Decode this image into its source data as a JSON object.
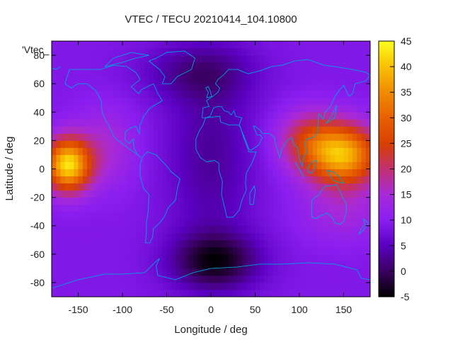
{
  "chart_data": {
    "type": "heatmap",
    "title": "VTEC / TECU 20210414_104.10800",
    "xlabel": "Longitude / deg",
    "ylabel": "Latitude / deg",
    "key_label": "'Vtec_",
    "xlim": [
      -180,
      180
    ],
    "ylim": [
      -90,
      90
    ],
    "xticks": [
      -150,
      -100,
      -50,
      0,
      50,
      100,
      150
    ],
    "yticks": [
      -80,
      -60,
      -40,
      -20,
      0,
      20,
      40,
      60,
      80
    ],
    "colorbar": {
      "range": [
        -5,
        45
      ],
      "ticks": [
        -5,
        0,
        5,
        10,
        15,
        20,
        25,
        30,
        35,
        40,
        45
      ]
    },
    "background_level": 9,
    "features": [
      {
        "name": "equatorial-anomaly-pacific-east",
        "lon": -160,
        "lat": 3,
        "value": 42
      },
      {
        "name": "equatorial-anomaly-asia",
        "lon": 150,
        "lat": 10,
        "value": 38
      },
      {
        "name": "southern-depletion",
        "lon": 0,
        "lat": -65,
        "value": -4
      },
      {
        "name": "northern-low",
        "lon": -10,
        "lat": 68,
        "value": 3
      }
    ]
  }
}
